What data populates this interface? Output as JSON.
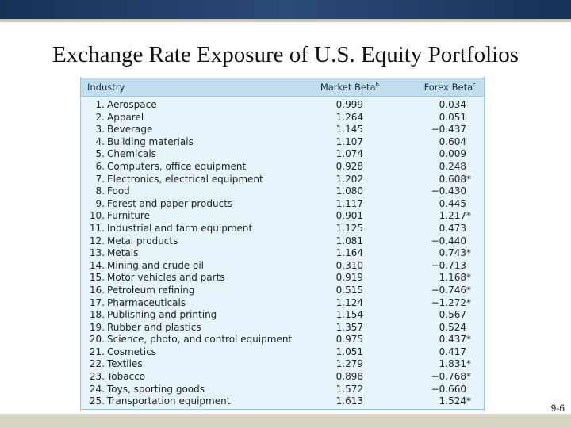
{
  "slide": {
    "title": "Exchange Rate Exposure of U.S. Equity Portfolios",
    "page_number": "9-6"
  },
  "table": {
    "headers": {
      "industry": "Industry",
      "market_beta": "Market Beta",
      "market_beta_note": "b",
      "forex_beta": "Forex Beta",
      "forex_beta_note": "c"
    },
    "rows": [
      {
        "num": "1.",
        "industry": "Aerospace",
        "market_beta": "0.999",
        "forex_beta": "0.034",
        "sig": ""
      },
      {
        "num": "2.",
        "industry": "Apparel",
        "market_beta": "1.264",
        "forex_beta": "0.051",
        "sig": ""
      },
      {
        "num": "3.",
        "industry": "Beverage",
        "market_beta": "1.145",
        "forex_beta": "−0.437",
        "sig": ""
      },
      {
        "num": "4.",
        "industry": "Building materials",
        "market_beta": "1.107",
        "forex_beta": "0.604",
        "sig": ""
      },
      {
        "num": "5.",
        "industry": "Chemicals",
        "market_beta": "1.074",
        "forex_beta": "0.009",
        "sig": ""
      },
      {
        "num": "6.",
        "industry": "Computers, office equipment",
        "market_beta": "0.928",
        "forex_beta": "0.248",
        "sig": ""
      },
      {
        "num": "7.",
        "industry": "Electronics, electrical equipment",
        "market_beta": "1.202",
        "forex_beta": "0.608",
        "sig": "*"
      },
      {
        "num": "8.",
        "industry": "Food",
        "market_beta": "1.080",
        "forex_beta": "−0.430",
        "sig": ""
      },
      {
        "num": "9.",
        "industry": "Forest and paper products",
        "market_beta": "1.117",
        "forex_beta": "0.445",
        "sig": ""
      },
      {
        "num": "10.",
        "industry": "Furniture",
        "market_beta": "0.901",
        "forex_beta": "1.217",
        "sig": "*"
      },
      {
        "num": "11.",
        "industry": "Industrial and farm equipment",
        "market_beta": "1.125",
        "forex_beta": "0.473",
        "sig": ""
      },
      {
        "num": "12.",
        "industry": "Metal products",
        "market_beta": "1.081",
        "forex_beta": "−0.440",
        "sig": ""
      },
      {
        "num": "13.",
        "industry": "Metals",
        "market_beta": "1.164",
        "forex_beta": "0.743",
        "sig": "*"
      },
      {
        "num": "14.",
        "industry": "Mining and crude oil",
        "market_beta": "0.310",
        "forex_beta": "−0.713",
        "sig": ""
      },
      {
        "num": "15.",
        "industry": "Motor vehicles and parts",
        "market_beta": "0.919",
        "forex_beta": "1.168",
        "sig": "*"
      },
      {
        "num": "16.",
        "industry": "Petroleum refining",
        "market_beta": "0.515",
        "forex_beta": "−0.746",
        "sig": "*"
      },
      {
        "num": "17.",
        "industry": "Pharmaceuticals",
        "market_beta": "1.124",
        "forex_beta": "−1.272",
        "sig": "*"
      },
      {
        "num": "18.",
        "industry": "Publishing and printing",
        "market_beta": "1.154",
        "forex_beta": "0.567",
        "sig": ""
      },
      {
        "num": "19.",
        "industry": "Rubber and plastics",
        "market_beta": "1.357",
        "forex_beta": "0.524",
        "sig": ""
      },
      {
        "num": "20.",
        "industry": "Science, photo, and control equipment",
        "market_beta": "0.975",
        "forex_beta": "0.437",
        "sig": "*"
      },
      {
        "num": "21.",
        "industry": "Cosmetics",
        "market_beta": "1.051",
        "forex_beta": "0.417",
        "sig": ""
      },
      {
        "num": "22.",
        "industry": "Textiles",
        "market_beta": "1.279",
        "forex_beta": "1.831",
        "sig": "*"
      },
      {
        "num": "23.",
        "industry": "Tobacco",
        "market_beta": "0.898",
        "forex_beta": "−0.768",
        "sig": "*"
      },
      {
        "num": "24.",
        "industry": "Toys, sporting goods",
        "market_beta": "1.572",
        "forex_beta": "−0.660",
        "sig": ""
      },
      {
        "num": "25.",
        "industry": "Transportation equipment",
        "market_beta": "1.613",
        "forex_beta": "1.524",
        "sig": "*"
      }
    ]
  },
  "colors": {
    "top_band": "#173257",
    "table_bg": "#e7f4fb",
    "table_header_bg": "#bfdff1",
    "bottom_band": "#d8d4c2"
  }
}
